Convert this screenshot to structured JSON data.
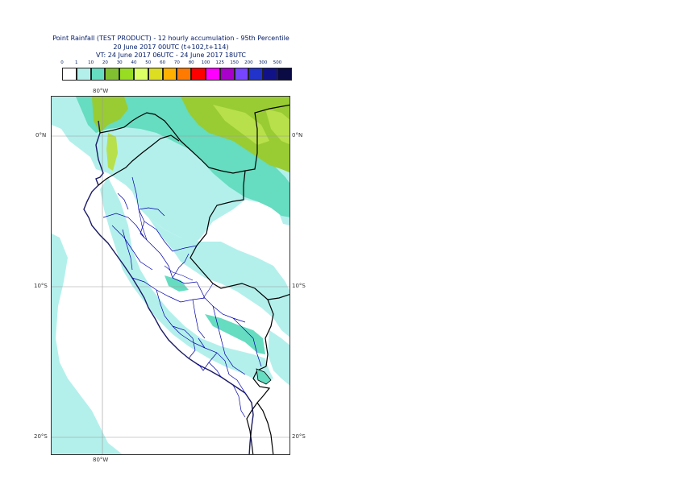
{
  "header": {
    "title": "Point Rainfall (TEST PRODUCT) - 12 hourly accumulation - 95th Percentile",
    "base_time": "20 June 2017 00UTC (t+102,t+114)",
    "valid_time": "VT: 24 June 2017 06UTC - 24 June 2017 18UTC"
  },
  "legend": {
    "thresholds": [
      "0",
      "1",
      "10",
      "20",
      "30",
      "40",
      "50",
      "60",
      "70",
      "80",
      "100",
      "125",
      "150",
      "200",
      "300",
      "500"
    ],
    "colors": [
      "#ffffff",
      "#b3f0ec",
      "#66dcc0",
      "#80c030",
      "#99dd22",
      "#ddff66",
      "#ddde22",
      "#ffb000",
      "#ff7a00",
      "#ff0000",
      "#ff00ff",
      "#aa00cc",
      "#7744ff",
      "#2233cc",
      "#121288",
      "#0a0a44"
    ]
  },
  "map": {
    "region": "Peru",
    "colors": {
      "background": "#ffffff",
      "light_cyan": "#b3f0ec",
      "teal": "#66dcc0",
      "green": "#99cc33",
      "yellow_green": "#b8e04a",
      "country_border": "#000000",
      "region_border": "#0000aa",
      "coastline": "#1a1a66",
      "grid": "#999999"
    },
    "labels": {
      "lon_top": "80°W",
      "lon_bottom": "80°W",
      "lat_0_left": "0°N",
      "lat_0_right": "0°N",
      "lat_10_left": "10°S",
      "lat_10_right": "10°S",
      "lat_20_left": "20°S",
      "lat_20_right": "20°S"
    }
  }
}
